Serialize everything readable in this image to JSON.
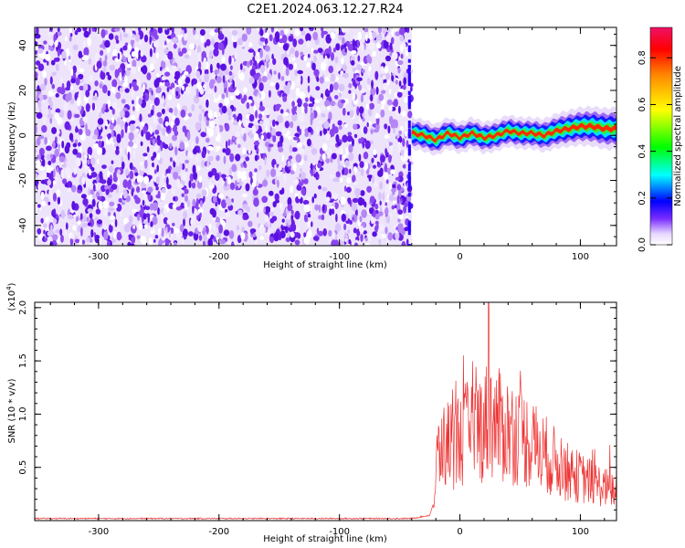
{
  "title": "C2E1.2024.063.12.27.R24",
  "chart_data": [
    {
      "type": "heatmap",
      "xlabel": "Height of straight line (km)",
      "ylabel": "Frequency (Hz)",
      "xlim": [
        -353,
        130
      ],
      "ylim": [
        -49,
        48
      ],
      "x_ticks": [
        -300,
        -200,
        -100,
        0,
        100
      ],
      "y_ticks": [
        -40,
        -20,
        0,
        20,
        40
      ],
      "x_tick_labels": [
        "-300",
        "-200",
        "-100",
        "0",
        "100"
      ],
      "y_tick_labels": [
        "-40",
        "-20",
        "0",
        "20",
        "40"
      ],
      "noise_region_x": [
        -353,
        -40
      ],
      "signal_trace": {
        "x": [
          -40,
          -30,
          -20,
          -10,
          0,
          10,
          20,
          30,
          40,
          50,
          60,
          70,
          80,
          90,
          100,
          110,
          120,
          130
        ],
        "y": [
          1,
          0,
          -2,
          1,
          -1,
          1,
          -1,
          0,
          2,
          1,
          1,
          0,
          2,
          3,
          4,
          4,
          3,
          3
        ]
      },
      "colorbar": {
        "label": "Normalized spectral amplitude",
        "range": [
          0,
          0.93
        ],
        "ticks": [
          0.0,
          0.2,
          0.4,
          0.6,
          0.8
        ],
        "tick_labels": [
          "0.0",
          "0.2",
          "0.4",
          "0.6",
          "0.8"
        ]
      },
      "grid": false
    },
    {
      "type": "line",
      "xlabel": "Height of straight line (km)",
      "ylabel": "SNR (10 * v/v)",
      "y_multiplier": "(x10",
      "y_multiplier_exp": "4",
      "y_multiplier_close": ")",
      "xlim": [
        -353,
        130
      ],
      "ylim": [
        0,
        2.05
      ],
      "x_ticks": [
        -300,
        -200,
        -100,
        0,
        100
      ],
      "y_ticks": [
        0.5,
        1.0,
        1.5,
        2.0
      ],
      "x_tick_labels": [
        "-300",
        "-200",
        "-100",
        "0",
        "100"
      ],
      "y_tick_labels": [
        "0.5",
        "1.0",
        "1.5",
        "2.0"
      ],
      "color": "#ee3333",
      "series": [
        {
          "x": [
            -353,
            -40,
            -25,
            -21,
            -19,
            -15,
            -10,
            0,
            10,
            20,
            25,
            30,
            40,
            50,
            60,
            70,
            80,
            90,
            100,
            110,
            120,
            130
          ],
          "y": [
            0.02,
            0.02,
            0.05,
            0.2,
            0.65,
            0.75,
            0.8,
            0.85,
            0.95,
            1.0,
            1.1,
            1.0,
            0.95,
            0.9,
            0.8,
            0.7,
            0.6,
            0.5,
            0.45,
            0.4,
            0.35,
            0.3
          ]
        }
      ],
      "peak": {
        "x": 24,
        "y": 2.05
      },
      "grid": false
    }
  ]
}
